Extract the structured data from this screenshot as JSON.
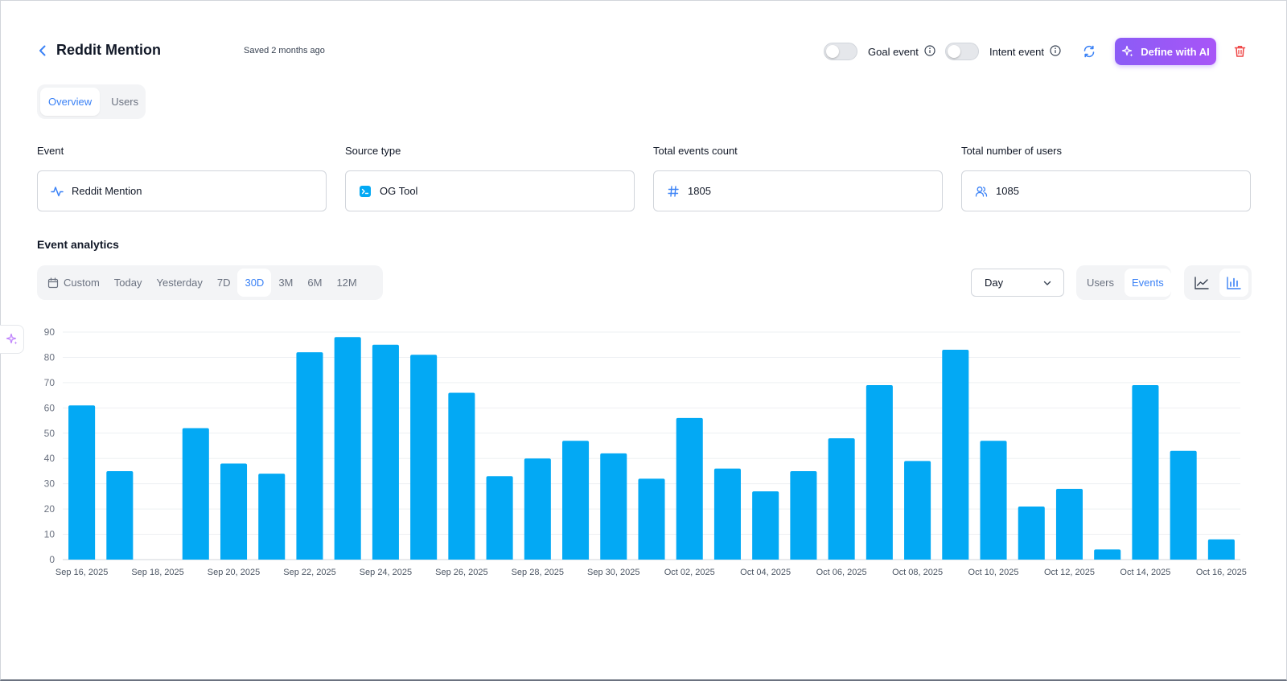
{
  "header": {
    "title": "Reddit Mention",
    "saved": "Saved 2 months ago",
    "goal_event_label": "Goal event",
    "intent_event_label": "Intent event",
    "define_ai_label": "Define with AI"
  },
  "tabs": [
    {
      "label": "Overview",
      "active": true
    },
    {
      "label": "Users",
      "active": false
    }
  ],
  "fields": {
    "event": {
      "label": "Event",
      "value": "Reddit Mention",
      "icon": "activity-icon"
    },
    "source": {
      "label": "Source type",
      "value": "OG Tool",
      "icon": "terminal-icon"
    },
    "total_events": {
      "label": "Total events count",
      "value": "1805",
      "icon": "hash-icon"
    },
    "total_users": {
      "label": "Total number of users",
      "value": "1085",
      "icon": "users-icon"
    }
  },
  "analytics": {
    "title": "Event analytics",
    "ranges": [
      "Custom",
      "Today",
      "Yesterday",
      "7D",
      "30D",
      "3M",
      "6M",
      "12M"
    ],
    "active_range": "30D",
    "granularity": "Day",
    "metric_options": [
      "Users",
      "Events"
    ],
    "active_metric": "Events",
    "chart_type_options": [
      "line",
      "bar"
    ],
    "active_chart_type": "bar"
  },
  "colors": {
    "accent": "#3b82f6",
    "bar": "#03a9f4",
    "ai_gradient_start": "#8b5cf6",
    "delete": "#ef4444"
  },
  "chart_data": {
    "type": "bar",
    "categories": [
      "Sep 16, 2025",
      "Sep 17, 2025",
      "Sep 18, 2025",
      "Sep 19, 2025",
      "Sep 20, 2025",
      "Sep 21, 2025",
      "Sep 22, 2025",
      "Sep 23, 2025",
      "Sep 24, 2025",
      "Sep 25, 2025",
      "Sep 26, 2025",
      "Sep 27, 2025",
      "Sep 28, 2025",
      "Sep 29, 2025",
      "Sep 30, 2025",
      "Oct 01, 2025",
      "Oct 02, 2025",
      "Oct 03, 2025",
      "Oct 04, 2025",
      "Oct 05, 2025",
      "Oct 06, 2025",
      "Oct 07, 2025",
      "Oct 08, 2025",
      "Oct 09, 2025",
      "Oct 10, 2025",
      "Oct 11, 2025",
      "Oct 12, 2025",
      "Oct 13, 2025",
      "Oct 14, 2025",
      "Oct 15, 2025",
      "Oct 16, 2025"
    ],
    "values": [
      61,
      35,
      0,
      52,
      38,
      34,
      82,
      88,
      85,
      81,
      66,
      33,
      40,
      47,
      42,
      32,
      56,
      36,
      27,
      35,
      48,
      69,
      39,
      83,
      47,
      21,
      28,
      4,
      69,
      43,
      8
    ],
    "tick_labels": [
      "Sep 16, 2025",
      "Sep 18, 2025",
      "Sep 20, 2025",
      "Sep 22, 2025",
      "Sep 24, 2025",
      "Sep 26, 2025",
      "Sep 28, 2025",
      "Sep 30, 2025",
      "Oct 02, 2025",
      "Oct 04, 2025",
      "Oct 06, 2025",
      "Oct 08, 2025",
      "Oct 10, 2025",
      "Oct 12, 2025",
      "Oct 14, 2025",
      "Oct 16, 2025"
    ],
    "y_ticks": [
      0,
      10,
      20,
      30,
      40,
      50,
      60,
      70,
      80,
      90
    ],
    "ylim": [
      0,
      90
    ],
    "grid": true,
    "title": "",
    "xlabel": "",
    "ylabel": ""
  }
}
